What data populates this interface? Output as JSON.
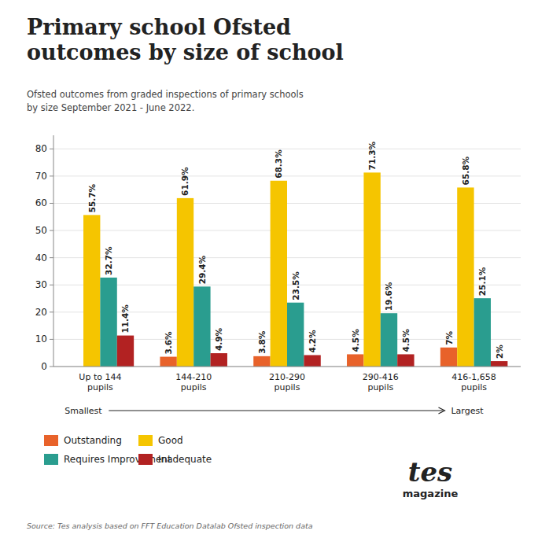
{
  "chart_data": {
    "type": "bar",
    "title": "Primary school Ofsted\noutcomes by size of school",
    "subtitle": "Ofsted outcomes from graded inspections of primary schools\nby size September 2021 - June 2022.",
    "source": "Source: Tes analysis based on FFT Education Datalab Ofsted inspection data",
    "annotations": [
      "Smallest",
      "Largest",
      "tes",
      "magazine"
    ],
    "categories": [
      "Up to 144\npupils",
      "144-210\npupils",
      "210-290\npupils",
      "290-416\npupils",
      "416-1,658\npupils"
    ],
    "series": [
      {
        "name": "Outstanding",
        "color": "#E8622A",
        "values": [
          0.0,
          3.6,
          3.8,
          4.5,
          7.0
        ],
        "value_labels": [
          null,
          "3.6%",
          "3.8%",
          "4.5%",
          "7%"
        ]
      },
      {
        "name": "Good",
        "color": "#F5C500",
        "values": [
          55.7,
          61.9,
          68.3,
          71.3,
          65.8
        ],
        "value_labels": [
          "55.7%",
          "61.9%",
          "68.3%",
          "71.3%",
          "65.8%"
        ]
      },
      {
        "name": "Requires Improvement",
        "color": "#2A9D8F",
        "values": [
          32.7,
          29.4,
          23.5,
          19.6,
          25.1
        ],
        "value_labels": [
          "32.7%",
          "29.4%",
          "23.5%",
          "19.6%",
          "25.1%"
        ]
      },
      {
        "name": "Inadequate",
        "color": "#B22222",
        "values": [
          11.4,
          4.9,
          4.2,
          4.5,
          2.0
        ],
        "value_labels": [
          "11.4%",
          "4.9%",
          "4.2%",
          "4.5%",
          "2%"
        ]
      }
    ],
    "ylim": [
      0,
      85
    ],
    "yticks": [
      0,
      10,
      20,
      30,
      40,
      50,
      60,
      70,
      80
    ],
    "grid": true,
    "legend": "bottom",
    "data_labels": true
  }
}
